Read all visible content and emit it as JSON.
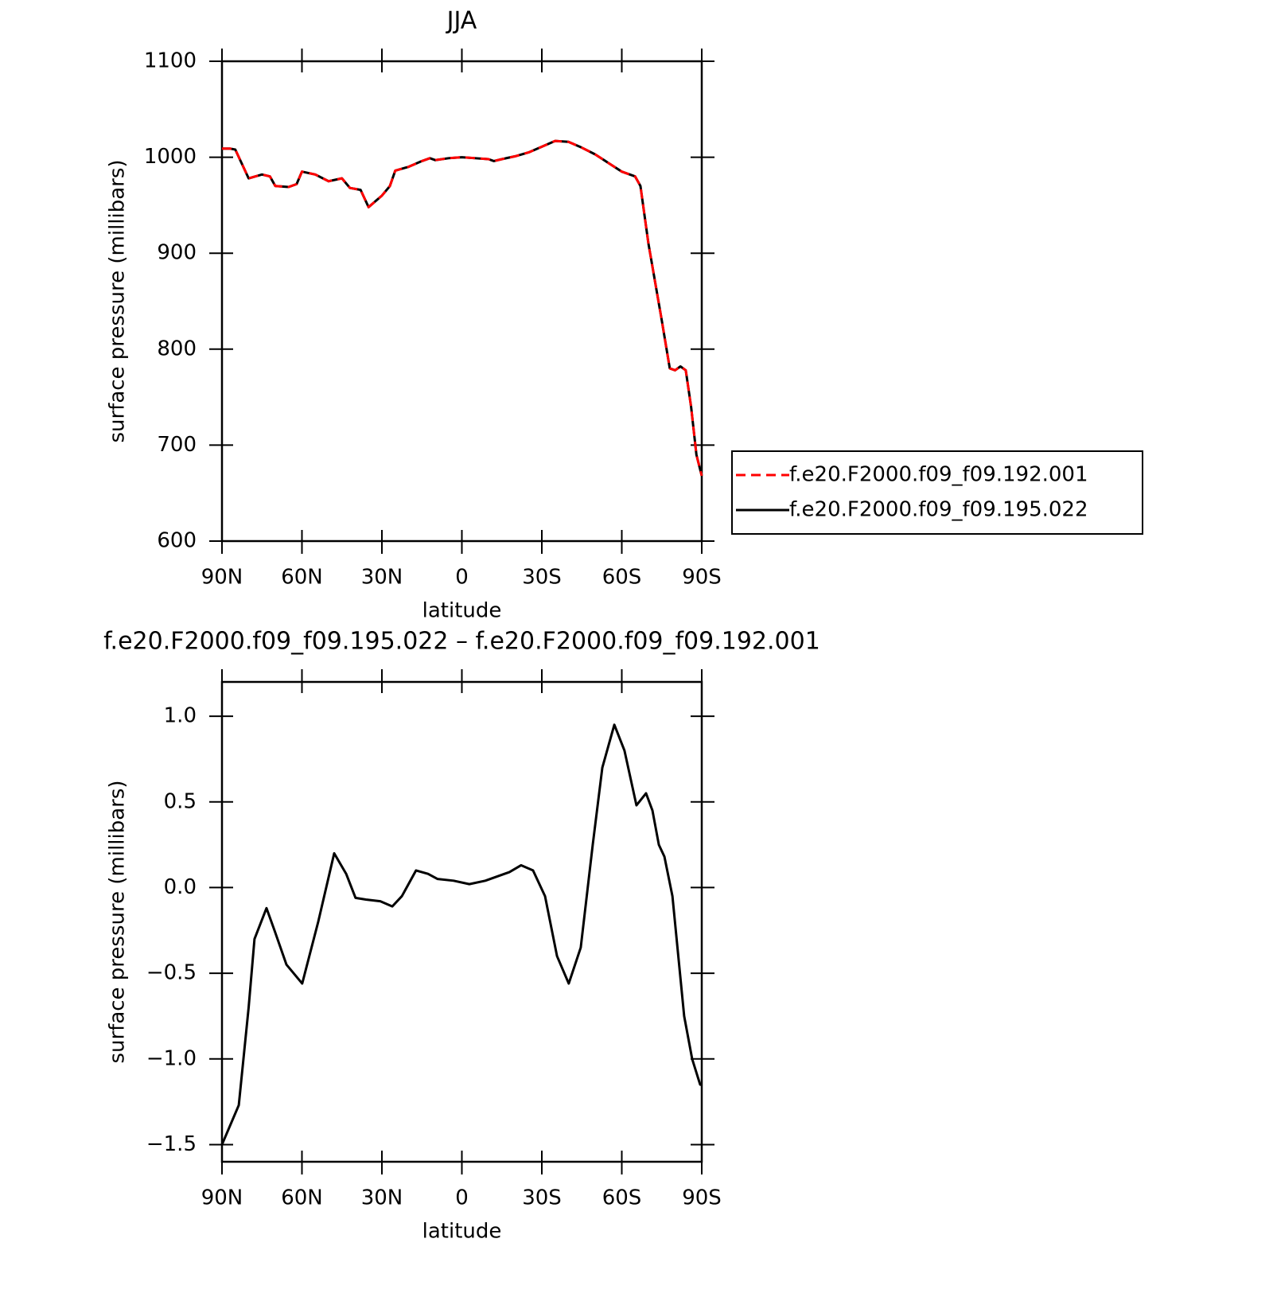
{
  "chart_data": [
    {
      "type": "line",
      "title": "JJA",
      "xlabel": "latitude",
      "ylabel": "surface pressure (millibars)",
      "x": [
        90,
        87,
        85,
        80,
        75,
        72,
        70,
        65,
        62,
        60,
        55,
        50,
        45,
        42,
        38,
        35,
        30,
        27,
        25,
        20,
        15,
        12,
        10,
        5,
        0,
        -5,
        -10,
        -12,
        -15,
        -20,
        -25,
        -30,
        -35,
        -40,
        -45,
        -50,
        -55,
        -60,
        -65,
        -67,
        -70,
        -75,
        -78,
        -80,
        -82,
        -84,
        -86,
        -88,
        -90
      ],
      "series": [
        {
          "name": "f.e20.F2000.f09_f09.192.001",
          "color": "#ff0000",
          "linestyle": "dashed",
          "values": [
            1009,
            1009,
            1008,
            978,
            982,
            980,
            970,
            969,
            972,
            985,
            982,
            975,
            978,
            968,
            966,
            948,
            960,
            970,
            986,
            990,
            996,
            999,
            997,
            999,
            1000,
            999,
            998,
            996,
            998,
            1001,
            1005,
            1011,
            1017,
            1016,
            1010,
            1003,
            994,
            985,
            980,
            970,
            910,
            830,
            780,
            778,
            782,
            778,
            740,
            690,
            668
          ]
        },
        {
          "name": "f.e20.F2000.f09_f09.195.022",
          "color": "#000000",
          "linestyle": "solid",
          "values": [
            1009,
            1009,
            1008,
            978,
            982,
            980,
            970,
            969,
            972,
            985,
            982,
            975,
            978,
            968,
            966,
            948,
            960,
            970,
            986,
            990,
            996,
            999,
            997,
            999,
            1000,
            999,
            998,
            996,
            998,
            1001,
            1005,
            1011,
            1017,
            1016,
            1010,
            1003,
            994,
            985,
            980,
            970,
            910,
            830,
            780,
            778,
            782,
            778,
            740,
            690,
            668
          ]
        }
      ],
      "xlim": [
        90,
        -90
      ],
      "xticks": [
        {
          "value": 90,
          "label": "90N"
        },
        {
          "value": 60,
          "label": "60N"
        },
        {
          "value": 30,
          "label": "30N"
        },
        0,
        {
          "value": -30,
          "label": "30S"
        },
        {
          "value": -60,
          "label": "60S"
        },
        {
          "value": -90,
          "label": "90S"
        }
      ],
      "ylim": [
        600,
        1100
      ],
      "yticks": [
        600,
        700,
        800,
        900,
        1000,
        1100
      ],
      "legend": "right"
    },
    {
      "type": "line",
      "title": "f.e20.F2000.f09_f09.195.022 – f.e20.F2000.f09_f09.192.001",
      "xlabel": "latitude",
      "ylabel": "surface pressure (millibars)",
      "x": [
        90,
        83.7,
        80,
        77.8,
        73.3,
        70.3,
        65.8,
        59.9,
        53.9,
        47.9,
        43.4,
        39.9,
        36,
        30.6,
        26.1,
        22.5,
        17.2,
        12.7,
        9.1,
        3.1,
        -2.8,
        -8.8,
        -17.8,
        -22.2,
        -26.7,
        -31.2,
        -35.7,
        -40.1,
        -44.6,
        -49.1,
        -52.7,
        -57.2,
        -61,
        -65.5,
        -69.1,
        -71.5,
        -73.9,
        -76,
        -79,
        -83.4,
        -86.4,
        -89.4,
        -90
      ],
      "series": [
        {
          "color": "#000000",
          "linestyle": "solid",
          "values": [
            -1.5,
            -1.27,
            -0.7,
            -0.3,
            -0.12,
            -0.25,
            -0.45,
            -0.56,
            -0.2,
            0.2,
            0.08,
            -0.06,
            -0.07,
            -0.08,
            -0.11,
            -0.05,
            0.1,
            0.08,
            0.05,
            0.04,
            0.02,
            0.04,
            0.09,
            0.13,
            0.1,
            -0.05,
            -0.4,
            -0.56,
            -0.35,
            0.25,
            0.7,
            0.95,
            0.8,
            0.48,
            0.55,
            0.45,
            0.25,
            0.18,
            -0.05,
            -0.75,
            -1.0,
            -1.15,
            -1.15
          ]
        }
      ],
      "xlim": [
        90,
        -90
      ],
      "xticks": [
        {
          "value": 90,
          "label": "90N"
        },
        {
          "value": 60,
          "label": "60N"
        },
        {
          "value": 30,
          "label": "30N"
        },
        0,
        {
          "value": -30,
          "label": "30S"
        },
        {
          "value": -60,
          "label": "60S"
        },
        {
          "value": -90,
          "label": "90S"
        }
      ],
      "ylim": [
        -1.6,
        1.2
      ],
      "yticks": [
        {
          "value": -1.5,
          "label": "−1.5"
        },
        {
          "value": -1.0,
          "label": "−1.0"
        },
        {
          "value": -0.5,
          "label": "−0.5"
        },
        {
          "value": 0,
          "label": "0.0"
        },
        0.5,
        {
          "value": 1.0,
          "label": "1.0"
        }
      ]
    }
  ]
}
